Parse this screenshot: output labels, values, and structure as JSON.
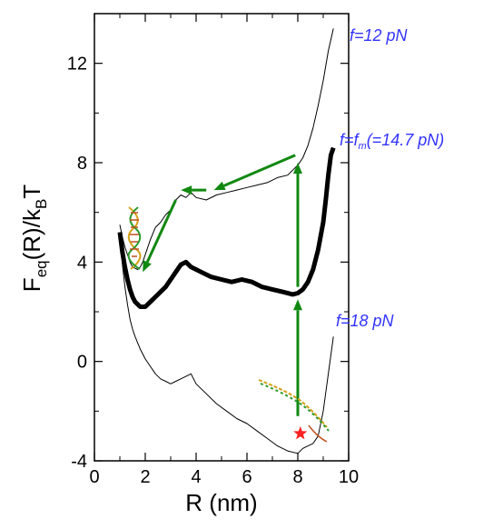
{
  "chart_data": {
    "type": "line",
    "xlabel": "R (nm)",
    "ylabel": {
      "main": "F",
      "sub1": "eq",
      "mid": "(R)/k",
      "sub2": "B",
      "tail": "T"
    },
    "xlim": [
      0,
      10
    ],
    "ylim": [
      -4,
      14
    ],
    "xticks": [
      "0",
      "2",
      "4",
      "6",
      "8",
      "10"
    ],
    "yticks": [
      "-4",
      "0",
      "4",
      "8",
      "12"
    ],
    "grid": false,
    "series": [
      {
        "name": "f=12 pN",
        "label_parts": {
          "main": "f=12 pN"
        },
        "color": "#000000",
        "width": "thin",
        "x": [
          1.0,
          1.1,
          1.2,
          1.3,
          1.4,
          1.5,
          1.6,
          1.7,
          1.8,
          1.9,
          2.0,
          2.2,
          2.4,
          2.6,
          2.8,
          3.0,
          3.2,
          3.4,
          3.6,
          3.8,
          4.0,
          4.4,
          4.8,
          5.2,
          5.6,
          6.0,
          6.4,
          6.8,
          7.2,
          7.6,
          8.0,
          8.2,
          8.4,
          8.6,
          8.8,
          9.0,
          9.2,
          9.4
        ],
        "y": [
          5.5,
          5.0,
          4.6,
          4.3,
          4.0,
          3.8,
          3.75,
          3.7,
          3.8,
          4.0,
          4.3,
          4.9,
          5.4,
          5.6,
          5.9,
          6.1,
          6.5,
          6.7,
          6.6,
          6.8,
          6.6,
          6.5,
          6.7,
          6.8,
          6.9,
          7.0,
          7.1,
          7.2,
          7.4,
          7.5,
          7.9,
          8.2,
          8.7,
          9.4,
          10.3,
          11.3,
          12.5,
          13.4
        ]
      },
      {
        "name": "f=fm(=14.7 pN)",
        "label_parts": {
          "main": "f=f",
          "sub": "m",
          "tail": "(=14.7 pN)"
        },
        "color": "#000000",
        "width": "thick",
        "x": [
          1.0,
          1.1,
          1.2,
          1.3,
          1.4,
          1.5,
          1.6,
          1.8,
          2.0,
          2.2,
          2.4,
          2.6,
          2.8,
          3.0,
          3.2,
          3.4,
          3.6,
          3.8,
          4.0,
          4.2,
          4.6,
          5.0,
          5.4,
          5.8,
          6.2,
          6.6,
          7.0,
          7.4,
          7.8,
          8.0,
          8.2,
          8.4,
          8.6,
          8.8,
          9.0,
          9.1,
          9.2,
          9.3,
          9.4
        ],
        "y": [
          5.2,
          4.4,
          3.8,
          3.3,
          2.9,
          2.6,
          2.4,
          2.2,
          2.2,
          2.4,
          2.6,
          2.8,
          3.0,
          3.3,
          3.6,
          3.9,
          4.0,
          3.8,
          3.7,
          3.6,
          3.4,
          3.3,
          3.2,
          3.3,
          3.2,
          3.0,
          2.9,
          2.8,
          2.7,
          2.75,
          2.9,
          3.2,
          3.7,
          4.5,
          5.6,
          6.5,
          7.5,
          8.3,
          8.6
        ]
      },
      {
        "name": "f=18 pN",
        "label_parts": {
          "main": "f=18 pN"
        },
        "color": "#000000",
        "width": "thin",
        "x": [
          1.0,
          1.1,
          1.2,
          1.3,
          1.4,
          1.5,
          1.6,
          1.8,
          2.0,
          2.2,
          2.4,
          2.6,
          2.8,
          3.0,
          3.2,
          3.4,
          3.6,
          3.8,
          4.0,
          4.4,
          4.8,
          5.2,
          5.6,
          6.0,
          6.4,
          6.8,
          7.2,
          7.6,
          8.0,
          8.2,
          8.4,
          8.6,
          8.8,
          9.0,
          9.2,
          9.4
        ],
        "y": [
          5.0,
          3.9,
          3.0,
          2.3,
          1.7,
          1.3,
          1.0,
          0.5,
          0.1,
          -0.2,
          -0.5,
          -0.7,
          -0.8,
          -0.9,
          -0.8,
          -0.7,
          -0.6,
          -0.5,
          -0.9,
          -1.3,
          -1.7,
          -2.0,
          -2.3,
          -2.5,
          -2.8,
          -3.1,
          -3.4,
          -3.6,
          -3.7,
          -3.5,
          -3.4,
          -3.3,
          -3.0,
          -2.0,
          -0.5,
          1.0
        ]
      }
    ],
    "annotations": {
      "arrow_color": "#118811",
      "star_color": "#ff2222",
      "arrows": [
        {
          "from": [
            8.0,
            3.0
          ],
          "to": [
            8.0,
            8.0
          ]
        },
        {
          "from": [
            8.0,
            -2.2
          ],
          "to": [
            8.0,
            2.5
          ]
        },
        {
          "from": [
            7.9,
            8.3
          ],
          "to": [
            4.7,
            6.9
          ]
        },
        {
          "from": [
            4.4,
            6.9
          ],
          "to": [
            3.4,
            6.9
          ]
        },
        {
          "from": [
            3.2,
            6.5
          ],
          "to": [
            1.9,
            3.6
          ]
        }
      ],
      "star": [
        8.1,
        -2.9
      ]
    }
  }
}
